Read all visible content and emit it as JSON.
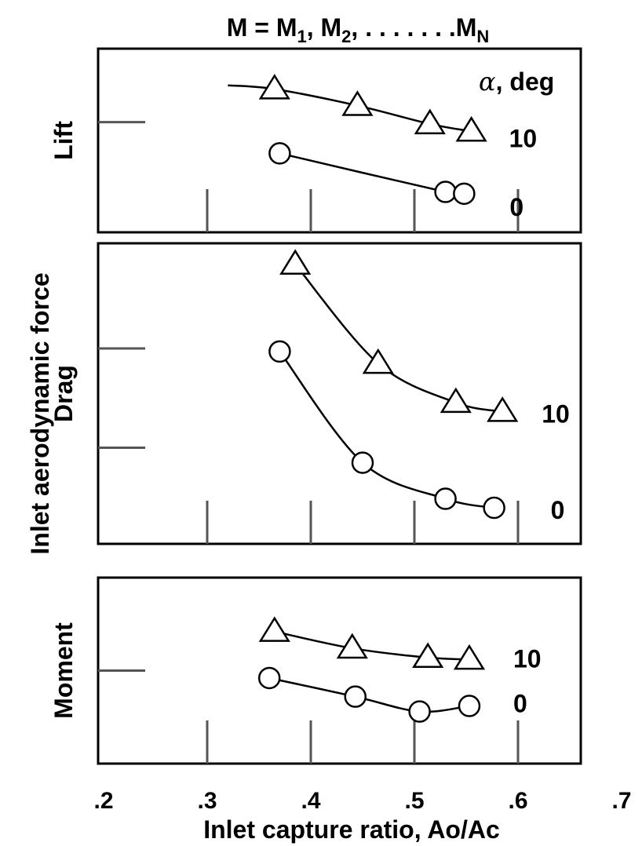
{
  "chart_data": {
    "type": "scatter",
    "title_parts": {
      "prefix": "M = M",
      "sub1": "1",
      "mid": ", M",
      "sub2": "2",
      "dots": ", . . . . . . .M",
      "subN": "N"
    },
    "xlabel": "Inlet capture ratio, Ao/Ac",
    "ylabel_line1": "Inlet aerodynamic force",
    "xlim": [
      0.2,
      0.7
    ],
    "xticks": [
      ".2",
      ".3",
      ".4",
      ".5",
      ".6",
      ".7"
    ],
    "xtick_values": [
      0.2,
      0.3,
      0.4,
      0.5,
      0.6,
      0.7
    ],
    "inner_tick_values": [
      0.3,
      0.4,
      0.5,
      0.6
    ],
    "legend_title_symbol": "α",
    "legend_title": ", deg",
    "y_values_note": "",
    "panels": [
      {
        "name": "lift",
        "ylabel": "Lift",
        "ylim": [
          0,
          1
        ],
        "yticks": [
          0.6
        ],
        "series": [
          {
            "name": "10",
            "marker": "triangle",
            "start_x": 0.32,
            "start_y": 0.8,
            "x": [
              0.365,
              0.445,
              0.515,
              0.555
            ],
            "y": [
              0.78,
              0.69,
              0.59,
              0.55
            ]
          },
          {
            "name": "0",
            "marker": "circle",
            "x": [
              0.37,
              0.53,
              0.548
            ],
            "y": [
              0.43,
              0.22,
              0.21
            ]
          }
        ]
      },
      {
        "name": "drag",
        "ylabel": "Drag",
        "ylim": [
          0,
          1
        ],
        "yticks": [
          0.65,
          0.32
        ],
        "series": [
          {
            "name": "10",
            "marker": "triangle",
            "x": [
              0.385,
              0.465,
              0.54,
              0.585
            ],
            "y": [
              0.93,
              0.6,
              0.47,
              0.44
            ]
          },
          {
            "name": "0",
            "marker": "circle",
            "x": [
              0.37,
              0.45,
              0.53,
              0.577
            ],
            "y": [
              0.64,
              0.27,
              0.15,
              0.12
            ]
          }
        ]
      },
      {
        "name": "moment",
        "ylabel": "Moment",
        "ylim": [
          0,
          1
        ],
        "yticks": [
          0.5
        ],
        "series": [
          {
            "name": "10",
            "marker": "triangle",
            "x": [
              0.365,
              0.44,
              0.513,
              0.553
            ],
            "y": [
              0.71,
              0.62,
              0.57,
              0.56
            ]
          },
          {
            "name": "0",
            "marker": "circle",
            "x": [
              0.36,
              0.443,
              0.505,
              0.553
            ],
            "y": [
              0.46,
              0.36,
              0.28,
              0.31
            ]
          }
        ]
      }
    ]
  }
}
